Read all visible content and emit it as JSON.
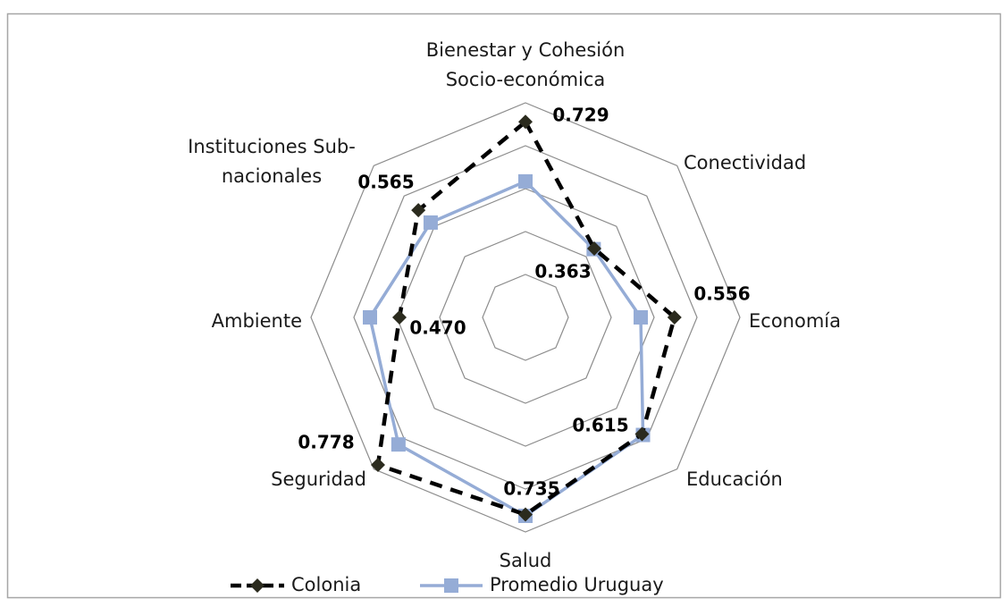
{
  "chart_data": {
    "type": "radar",
    "categories": [
      "Bienestar y Cohesión\nSocio-económica",
      "Conectividad",
      "Economía",
      "Educación",
      "Salud",
      "Seguridad",
      "Ambiente",
      "Instituciones Sub-\nnacionales"
    ],
    "ylim": [
      0,
      0.8
    ],
    "yticks": [
      0,
      0.16,
      0.32,
      0.48,
      0.64,
      0.8
    ],
    "grid": true,
    "legend": "bottom",
    "series": [
      {
        "name": "Colonia",
        "color": "#000000",
        "values": [
          0.729,
          0.363,
          0.556,
          0.615,
          0.735,
          0.778,
          0.47,
          0.565
        ],
        "value_labels": [
          "0.729",
          "0.363",
          "0.556",
          "0.615",
          "0.735",
          "0.778",
          "0.470",
          "0.565"
        ]
      },
      {
        "name": "Promedio Uruguay",
        "color": "#95acd6",
        "values": [
          0.507,
          0.36,
          0.43,
          0.62,
          0.74,
          0.67,
          0.58,
          0.5
        ]
      }
    ]
  }
}
